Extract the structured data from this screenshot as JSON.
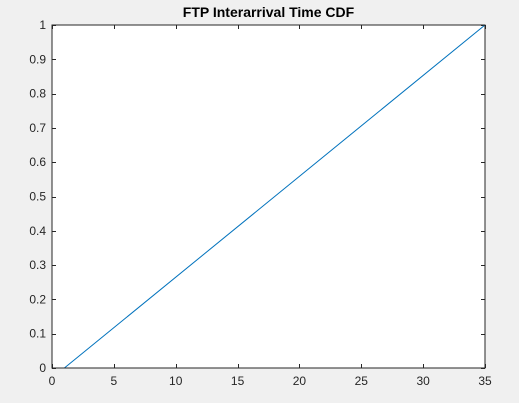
{
  "chart_data": {
    "type": "line",
    "title": "FTP Interarrival Time CDF",
    "xlabel": "",
    "ylabel": "",
    "xlim": [
      0,
      35
    ],
    "ylim": [
      0,
      1
    ],
    "xticks": [
      0,
      5,
      10,
      15,
      20,
      25,
      30,
      35
    ],
    "yticks": [
      0,
      0.1,
      0.2,
      0.3,
      0.4,
      0.5,
      0.6,
      0.7,
      0.8,
      0.9,
      1
    ],
    "grid": false,
    "series": [
      {
        "x": [
          1,
          35
        ],
        "y": [
          0,
          1
        ],
        "color": "#0072bd"
      }
    ]
  },
  "colors": {
    "background": "#f0f0f0",
    "axes_face": "#ffffff",
    "axes_edge": "#262626",
    "line": "#0072bd"
  }
}
